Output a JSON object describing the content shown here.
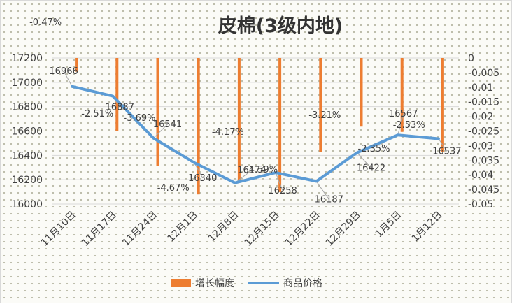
{
  "chart_data": {
    "type": "bar+line",
    "title": "皮棉(3级内地)",
    "categories": [
      "11月10日",
      "11月17日",
      "11月24日",
      "12月1日",
      "12月8日",
      "12月15日",
      "12月22日",
      "12月29日",
      "1月5日",
      "1月12日"
    ],
    "series": [
      {
        "name": "增长幅度",
        "type": "bar",
        "axis": "right",
        "color": "#ED7D31",
        "values": [
          -0.0047,
          -0.0251,
          -0.0369,
          -0.0467,
          -0.0417,
          -0.0459,
          -0.0321,
          -0.0235,
          -0.0253,
          -0.0321
        ],
        "labels": [
          "-0.47%",
          "-2.51%",
          "-3.69%",
          "-4.67%",
          "-4.17%",
          "-4.59%",
          "-3.21%",
          "-2.35%",
          "-2.53%",
          ""
        ]
      },
      {
        "name": "商品价格",
        "type": "line",
        "axis": "left",
        "color": "#5B9BD5",
        "values": [
          16966,
          16887,
          16541,
          16340,
          16174,
          16258,
          16187,
          16422,
          16567,
          16537
        ],
        "labels": [
          "16966",
          "16887",
          "16541",
          "16340",
          "16174",
          "16258",
          "16187",
          "16422",
          "16567",
          "16537"
        ]
      }
    ],
    "y_left": {
      "min": 16000,
      "max": 17200,
      "ticks": [
        "16000",
        "16200",
        "16400",
        "16600",
        "16800",
        "17000",
        "17200"
      ]
    },
    "y_right": {
      "min": -0.05,
      "max": 0,
      "ticks": [
        "0",
        "-0.005",
        "-0.01",
        "-0.015",
        "-0.02",
        "-0.025",
        "-0.03",
        "-0.035",
        "-0.04",
        "-0.045",
        "-0.05"
      ]
    },
    "grid": true,
    "legend": "bottom"
  }
}
